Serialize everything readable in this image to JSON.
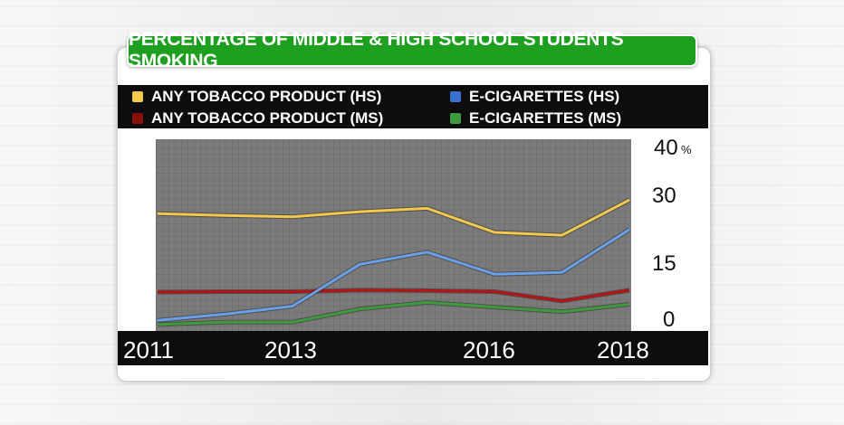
{
  "chart_data": {
    "type": "line",
    "title": "PERCENTAGE OF MIDDLE & HIGH SCHOOL STUDENTS SMOKING",
    "x": [
      2011,
      2012,
      2013,
      2014,
      2015,
      2016,
      2017,
      2018
    ],
    "xticks": [
      "2011",
      "2013",
      "2016",
      "2018"
    ],
    "yticks": [
      "40",
      "30",
      "15",
      "0"
    ],
    "y_unit": "%",
    "ylim": [
      0,
      40
    ],
    "grid": true,
    "series": [
      {
        "name": "ANY TOBACCO PRODUCT (HS)",
        "color": "#f2c94c",
        "values": [
          24.2,
          23.8,
          23.5,
          24.6,
          25.3,
          20.2,
          19.6,
          27.1
        ]
      },
      {
        "name": "E-CIGARETTES (HS)",
        "color": "#6aa0e8",
        "values": [
          1.5,
          2.8,
          4.5,
          13.4,
          16.0,
          11.3,
          11.7,
          20.8
        ]
      },
      {
        "name": "ANY TOBACCO PRODUCT (MS)",
        "color": "#b31414",
        "values": [
          7.5,
          7.6,
          7.6,
          7.9,
          7.8,
          7.6,
          5.6,
          7.9
        ]
      },
      {
        "name": "E-CIGARETTES (MS)",
        "color": "#3d9a3d",
        "values": [
          0.6,
          1.1,
          1.1,
          3.9,
          5.3,
          4.3,
          3.3,
          4.9
        ]
      }
    ]
  }
}
